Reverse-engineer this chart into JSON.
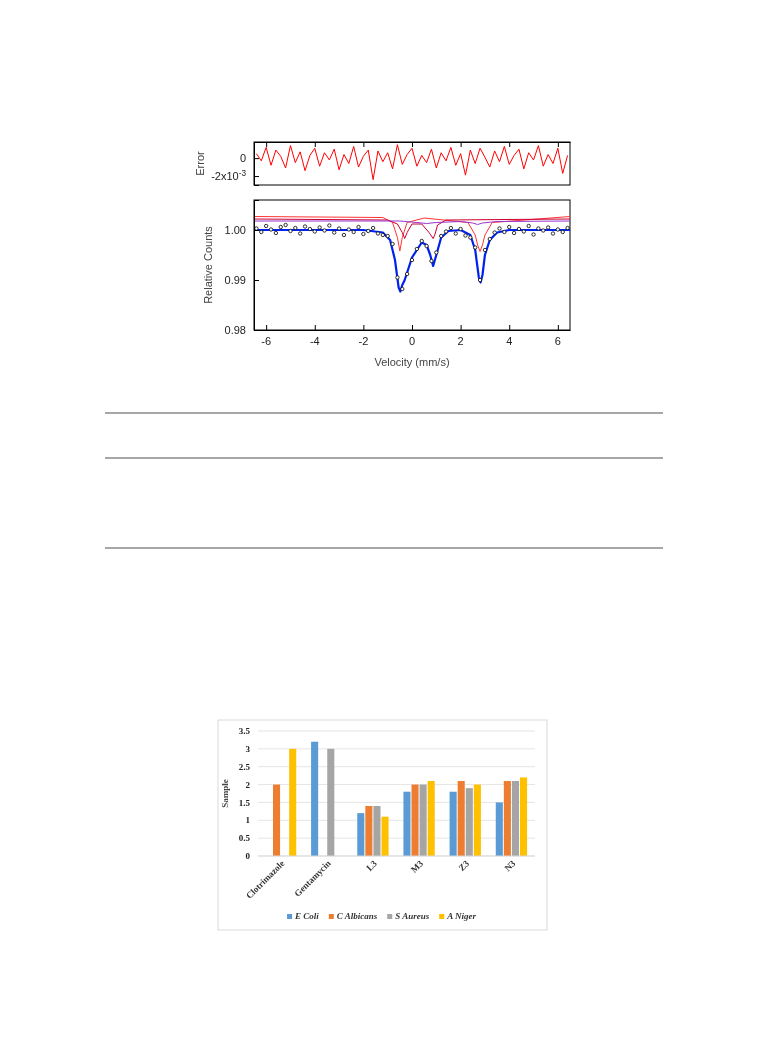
{
  "chart_data": [
    {
      "type": "line",
      "ylabel": "Error",
      "xlim": [
        -6.5,
        6.5
      ],
      "xticks": [
        -6,
        -4,
        -2,
        0,
        2,
        4,
        6
      ],
      "ylim": [
        -0.003,
        0.0018
      ],
      "yticks": [
        0,
        {
          "value": -0.002,
          "label": "-2x10$^{-3}$"
        }
      ],
      "tick_labels": "y",
      "series": [
        {
          "color": "#ff0000",
          "x": [
            -6.4,
            -6.2,
            -6.0,
            -5.8,
            -5.6,
            -5.4,
            -5.2,
            -5.0,
            -4.8,
            -4.6,
            -4.4,
            -4.2,
            -4.0,
            -3.8,
            -3.6,
            -3.4,
            -3.2,
            -3.0,
            -2.8,
            -2.6,
            -2.4,
            -2.2,
            -2.0,
            -1.8,
            -1.6,
            -1.4,
            -1.2,
            -1.0,
            -0.8,
            -0.6,
            -0.4,
            -0.2,
            0.0,
            0.2,
            0.4,
            0.6,
            0.8,
            1.0,
            1.2,
            1.4,
            1.6,
            1.8,
            2.0,
            2.2,
            2.4,
            2.6,
            2.8,
            3.0,
            3.2,
            3.4,
            3.6,
            3.8,
            4.0,
            4.2,
            4.4,
            4.6,
            4.8,
            5.0,
            5.2,
            5.4,
            5.6,
            5.8,
            6.0,
            6.2,
            6.4
          ],
          "values": [
            0.0005,
            -0.0003,
            0.0012,
            -0.0008,
            0.0009,
            0.0002,
            -0.0011,
            0.0014,
            -0.0005,
            0.0007,
            -0.0014,
            0.0003,
            0.0011,
            -0.0009,
            0.0006,
            -0.0002,
            0.001,
            -0.0013,
            0.0004,
            -0.0006,
            0.0013,
            -0.001,
            0.0002,
            0.0009,
            -0.0024,
            0.0008,
            -0.0004,
            0.0006,
            -0.0012,
            0.0015,
            -0.0007,
            0.0004,
            0.0011,
            -0.0009,
            0.0003,
            -0.0005,
            0.001,
            -0.0011,
            0.0006,
            -0.0003,
            0.0012,
            -0.0008,
            0.0005,
            -0.0019,
            0.0009,
            -0.0006,
            0.0011,
            0.0001,
            -0.001,
            0.0008,
            -0.0004,
            0.0013,
            -0.0007,
            0.0003,
            0.001,
            -0.0012,
            0.0006,
            -0.0002,
            0.0014,
            -0.0009,
            0.0004,
            -0.0006,
            0.0011,
            -0.0017,
            0.0003
          ]
        }
      ]
    },
    {
      "type": "scatter",
      "xlabel": "Velocity (mm/s)",
      "ylabel": "Relative Counts",
      "xlim": [
        -6.5,
        6.5
      ],
      "xticks": [
        -6,
        -4,
        -2,
        0,
        2,
        4,
        6
      ],
      "ylim": [
        0.98,
        1.006
      ],
      "yticks": [
        {
          "value": 0.98,
          "label": "0.98"
        },
        {
          "value": 0.99,
          "label": "0.99"
        },
        {
          "value": 1.0,
          "label": "1.00"
        }
      ],
      "series": [
        {
          "type": "line",
          "marker": "none",
          "color": "#ff3333",
          "x": [
            -6.5,
            -1.2,
            -0.8,
            -0.6,
            -0.5,
            -0.4,
            -0.2,
            0.5,
            2.3,
            2.6,
            2.7,
            2.8,
            2.9,
            3.0,
            3.3,
            6.5
          ],
          "values": [
            1.0027,
            1.0025,
            1.0015,
            0.9985,
            0.9958,
            0.9985,
            1.0015,
            1.0024,
            1.0015,
            0.999,
            0.997,
            0.9957,
            0.997,
            0.999,
            1.0015,
            1.0027
          ]
        },
        {
          "type": "line",
          "marker": "none",
          "color": "#cc0033",
          "x": [
            -6.5,
            -1.0,
            -0.6,
            -0.4,
            -0.3,
            -0.2,
            0.0,
            0.4,
            0.7,
            0.8,
            0.87,
            0.95,
            1.05,
            1.4,
            6.5
          ],
          "values": [
            1.0022,
            1.002,
            1.0012,
            0.9995,
            0.9983,
            0.9995,
            1.0012,
            1.0012,
            0.9995,
            0.9988,
            0.9983,
            0.9992,
            1.001,
            1.002,
            1.0022
          ]
        },
        {
          "type": "line",
          "marker": "none",
          "color": "#9933cc",
          "x": [
            -6.5,
            -0.5,
            0.2,
            0.6,
            1.0,
            2.0,
            2.5,
            2.7,
            2.9,
            3.5,
            6.5
          ],
          "values": [
            1.0018,
            1.0018,
            1.0015,
            1.0013,
            1.0015,
            1.0017,
            1.0014,
            1.0011,
            1.0014,
            1.0017,
            1.0018
          ]
        },
        {
          "marker": "circle",
          "color": "#000000",
          "x": [
            -6.4,
            -6.2,
            -6.0,
            -5.8,
            -5.6,
            -5.4,
            -5.2,
            -5.0,
            -4.8,
            -4.6,
            -4.4,
            -4.2,
            -4.0,
            -3.8,
            -3.6,
            -3.4,
            -3.2,
            -3.0,
            -2.8,
            -2.6,
            -2.4,
            -2.2,
            -2.0,
            -1.8,
            -1.6,
            -1.4,
            -1.2,
            -1.0,
            -0.8,
            -0.6,
            -0.4,
            -0.2,
            0.0,
            0.2,
            0.4,
            0.6,
            0.8,
            1.0,
            1.2,
            1.4,
            1.6,
            1.8,
            2.0,
            2.2,
            2.4,
            2.6,
            2.8,
            3.0,
            3.2,
            3.4,
            3.6,
            3.8,
            4.0,
            4.2,
            4.4,
            4.6,
            4.8,
            5.0,
            5.2,
            5.4,
            5.6,
            5.8,
            6.0,
            6.2,
            6.4
          ],
          "values": [
            1.0003,
            0.9996,
            1.0008,
            1.0001,
            0.9994,
            1.0006,
            1.001,
            0.9998,
            1.0004,
            0.9993,
            1.0007,
            1.0002,
            0.9997,
            1.0005,
            0.9999,
            1.0009,
            0.9995,
            1.0003,
            0.999,
            1.0001,
            0.9996,
            1.0006,
            0.9992,
            0.9998,
            1.0004,
            0.9993,
            0.999,
            0.9988,
            0.9972,
            0.9905,
            0.9882,
            0.9912,
            0.994,
            0.9962,
            0.9978,
            0.9968,
            0.9938,
            0.9955,
            0.9988,
            0.9997,
            1.0004,
            0.9993,
            1.0002,
            0.9989,
            0.9985,
            0.9965,
            0.99,
            0.996,
            0.9982,
            0.9995,
            1.0003,
            0.9996,
            1.0006,
            0.9994,
            1.0002,
            0.9997,
            1.0008,
            0.9991,
            1.0003,
            0.9999,
            1.0005,
            0.9993,
            1.0001,
            0.9996,
            1.0004
          ]
        },
        {
          "type": "line",
          "marker": "none",
          "color": "#0022ee",
          "x": [
            -6.5,
            -2.0,
            -1.2,
            -0.9,
            -0.7,
            -0.55,
            -0.48,
            -0.4,
            -0.3,
            -0.2,
            0.0,
            0.2,
            0.4,
            0.6,
            0.75,
            0.87,
            1.0,
            1.2,
            1.5,
            2.0,
            2.4,
            2.6,
            2.75,
            2.82,
            2.9,
            3.0,
            3.2,
            3.5,
            4.0,
            6.5
          ],
          "values": [
            1.0,
            1.0,
            0.9995,
            0.998,
            0.994,
            0.9885,
            0.9877,
            0.989,
            0.99,
            0.9915,
            0.9945,
            0.996,
            0.9975,
            0.997,
            0.995,
            0.9928,
            0.995,
            0.9985,
            0.9998,
            1.0,
            0.999,
            0.996,
            0.9905,
            0.9895,
            0.991,
            0.995,
            0.998,
            0.9995,
            1.0,
            1.0
          ]
        }
      ]
    },
    {
      "type": "bar",
      "ylabel": "Sample",
      "categories": [
        "Clotrimazole",
        "Gentamycin",
        "L3",
        "M3",
        "Z3",
        "N3"
      ],
      "ylim": [
        0,
        3.5
      ],
      "yticks": [
        0,
        0.5,
        1,
        1.5,
        2,
        2.5,
        3,
        3.5
      ],
      "grid": "y",
      "legend": "bottom",
      "series": [
        {
          "name": "E Coli",
          "color": "#5b9bd5",
          "values": [
            null,
            3.2,
            1.2,
            1.8,
            1.8,
            1.5
          ]
        },
        {
          "name": "C Albicans",
          "color": "#ed7d31",
          "values": [
            2,
            null,
            1.4,
            2,
            2.1,
            2.1
          ]
        },
        {
          "name": "S Aureus",
          "color": "#a5a5a5",
          "values": [
            null,
            3,
            1.4,
            2,
            1.9,
            2.1
          ]
        },
        {
          "name": "A Niger",
          "color": "#ffc000",
          "values": [
            3,
            null,
            1.1,
            2.1,
            2,
            2.2
          ]
        }
      ]
    }
  ]
}
